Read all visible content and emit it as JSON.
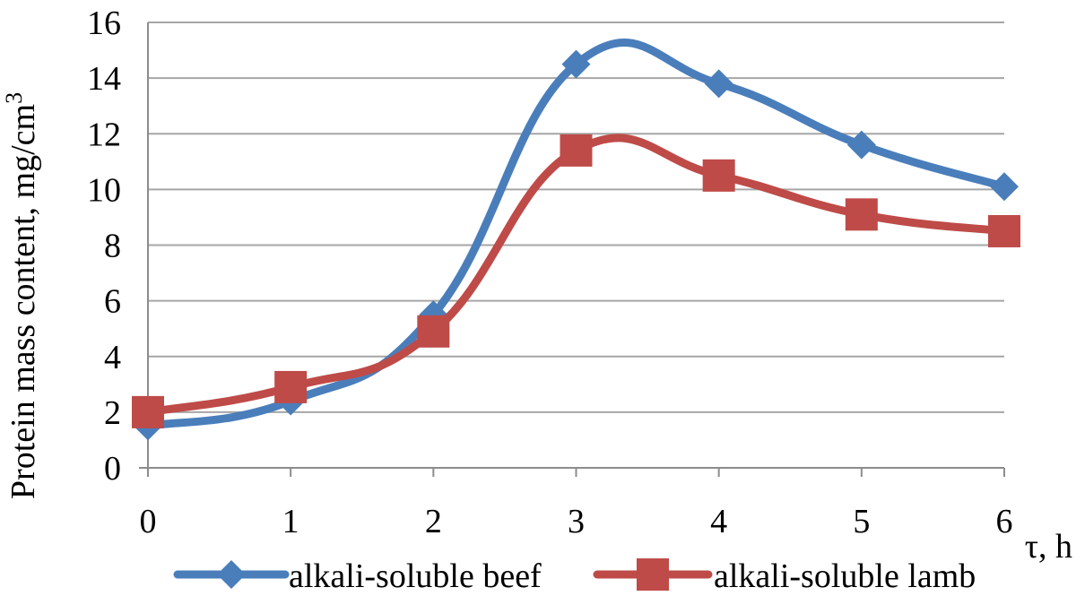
{
  "chart_data": {
    "type": "line",
    "smooth": true,
    "title": "",
    "xlabel": "τ, h",
    "ylabel": "Protein mass content, mg/cm",
    "ylabel_superscript": "3",
    "x": [
      0,
      1,
      2,
      3,
      4,
      5,
      6
    ],
    "x_tick_labels": [
      "0",
      "1",
      "2",
      "3",
      "4",
      "5",
      "6"
    ],
    "y_tick_labels": [
      "0",
      "2",
      "4",
      "6",
      "8",
      "10",
      "12",
      "14",
      "16"
    ],
    "ylim": [
      0,
      16
    ],
    "xlim": [
      0,
      6
    ],
    "grid": "horizontal",
    "legend_position": "bottom",
    "series": [
      {
        "name": "alkali-soluble beef",
        "values": [
          1.5,
          2.4,
          5.5,
          14.5,
          13.8,
          11.6,
          10.1
        ],
        "color": "#4a7ebb",
        "marker": "diamond"
      },
      {
        "name": "alkali-soluble lamb",
        "values": [
          2.0,
          2.9,
          4.9,
          11.4,
          10.5,
          9.1,
          8.5
        ],
        "color": "#be4b48",
        "marker": "square"
      }
    ]
  }
}
